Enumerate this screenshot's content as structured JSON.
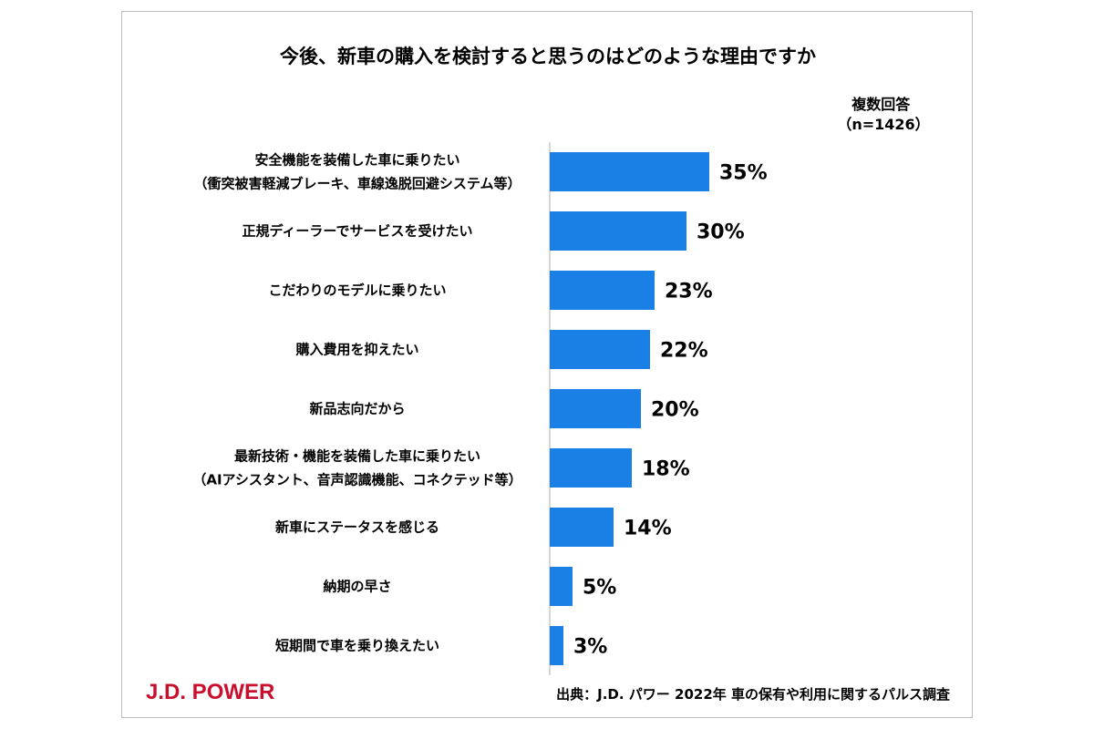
{
  "chart_data": {
    "type": "bar",
    "orientation": "horizontal",
    "title": "今後、新車の購入を検討すると思うのはどのような理由ですか",
    "note_lines": [
      "複数回答",
      "（n=1426）"
    ],
    "categories": [
      [
        "安全機能を装備した車に乗りたい",
        "（衝突被害軽減ブレーキ、車線逸脱回避システム等）"
      ],
      [
        "正規ディーラーでサービスを受けたい"
      ],
      [
        "こだわりのモデルに乗りたい"
      ],
      [
        "購入費用を抑えたい"
      ],
      [
        "新品志向だから"
      ],
      [
        "最新技術・機能を装備した車に乗りたい",
        "（AIアシスタント、音声認識機能、コネクテッド等）"
      ],
      [
        "新車にステータスを感じる"
      ],
      [
        "納期の早さ"
      ],
      [
        "短期間で車を乗り換えたい"
      ]
    ],
    "values": [
      35,
      30,
      23,
      22,
      20,
      18,
      14,
      5,
      3
    ],
    "value_labels": [
      "35%",
      "30%",
      "23%",
      "22%",
      "20%",
      "18%",
      "14%",
      "5%",
      "3%"
    ],
    "unit": "%",
    "xlim": [
      0,
      35
    ],
    "bar_color": "#1a80e5",
    "axis_color": "#c8c8c8",
    "grid": false,
    "legend": "none"
  },
  "logo_text": "J.D. POWER",
  "logo_color": "#c8102e",
  "source_text": "出典：J.D. パワー 2022年 車の保有や利用に関するパルス調査"
}
